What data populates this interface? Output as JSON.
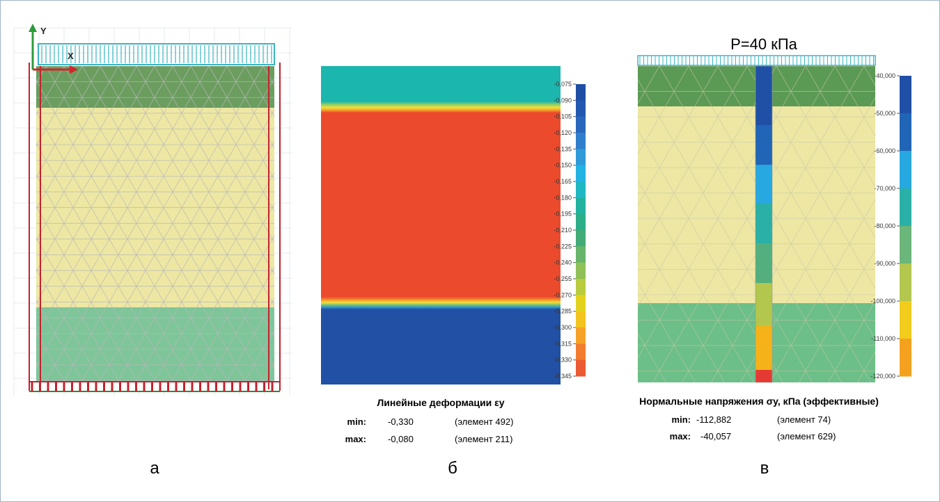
{
  "panel_a": {
    "caption": "а",
    "axis_y": "Y",
    "axis_x": "X",
    "colors": {
      "top_layer": "#6b9d5f",
      "middle_layer": "#ede7a3",
      "bottom_layer": "#7fc59a",
      "load": "#3ab3c0",
      "boundary": "#c0232e",
      "mesh": "#b9b9b9"
    }
  },
  "panel_b": {
    "caption": "б",
    "title": "Линейные деформации εy",
    "min_label": "min:",
    "min_value": "-0,330",
    "min_element": "(элемент 492)",
    "max_label": "max:",
    "max_value": "-0,080",
    "max_element": "(элемент 211)",
    "scale_ticks": [
      "-0,075",
      "-0,090",
      "-0,105",
      "-0,120",
      "-0,135",
      "-0,150",
      "-0,165",
      "-0,180",
      "-0,195",
      "-0,210",
      "-0,225",
      "-0,240",
      "-0,255",
      "-0,270",
      "-0,285",
      "-0,300",
      "-0,315",
      "-0,330",
      "-0,345"
    ],
    "scale_colors": [
      "#1f4fa5",
      "#2358b0",
      "#2a68bd",
      "#2f7fcc",
      "#2e9bd8",
      "#23b3e3",
      "#1fb8c2",
      "#22b39e",
      "#2cae88",
      "#43ab77",
      "#66b56b",
      "#8fc158",
      "#b8cc3e",
      "#e2d21e",
      "#f3c31f",
      "#f6a228",
      "#f27d2f",
      "#ec5a33",
      "#e63a35"
    ],
    "regions": {
      "top": "#1bb6ae",
      "middle": "#eb4a2c",
      "bottom": "#2150a5",
      "band": "#e9e04a"
    }
  },
  "panel_c": {
    "caption": "в",
    "load_label": "P=40 кПа",
    "title": "Нормальные напряжения σy, кПа (эффективные)",
    "min_label": "min:",
    "min_value": "-112,882",
    "min_element": "(элемент 74)",
    "max_label": "max:",
    "max_value": "-40,057",
    "max_element": "(элемент 629)",
    "scale_ticks": [
      "-40,000",
      "-50,000",
      "-60,000",
      "-70,000",
      "-80,000",
      "-90,000",
      "-100,000",
      "-110,000",
      "-120,000"
    ],
    "scale_colors": [
      "#2050a6",
      "#2065b6",
      "#27a8e0",
      "#2ab0a6",
      "#6bb67a",
      "#b3c64d",
      "#f2cc1c",
      "#f4a11f",
      "#e53a34"
    ],
    "column_colors": [
      "#2050a6",
      "#2065b6",
      "#27a8e0",
      "#2ab0a6",
      "#53b07e",
      "#b3c64d",
      "#f5b219",
      "#e53a34"
    ],
    "regions": {
      "top": "#5b9a54",
      "middle": "#ede7a3",
      "bottom": "#6cbf88",
      "load": "#3ab3c0"
    }
  }
}
